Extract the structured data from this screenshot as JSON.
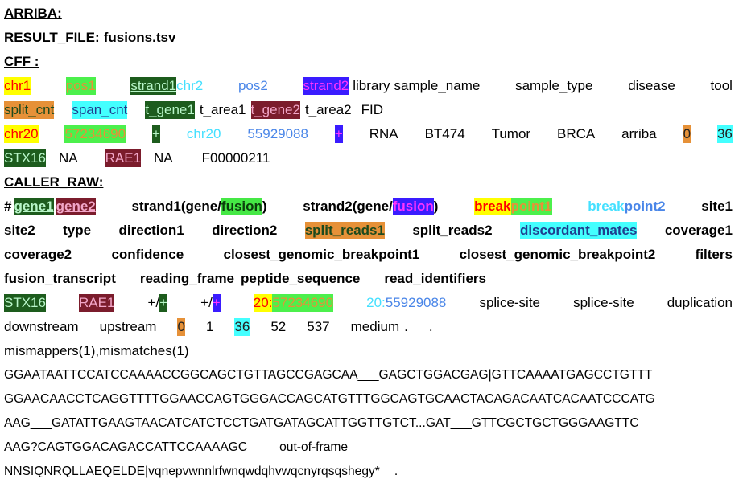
{
  "lines": [
    [
      "ARRIBA:"
    ],
    [
      "RESULT_FILE:",
      "fusions.tsv"
    ],
    [
      "CFF :"
    ],
    [
      "chr1",
      "pos1",
      "strand1",
      "chr2",
      "pos2",
      "strand2",
      "library",
      "sample_name",
      "sample_type",
      "disease",
      "tool"
    ],
    [
      "split_cnt",
      "span_cnt",
      "t_gene1",
      "t_area1",
      "t_gene2",
      "t_area2",
      "FID"
    ],
    [
      "chr20",
      "57234690",
      "+",
      "chr20",
      "55929088",
      "+",
      "RNA",
      "BT474",
      "Tumor",
      "BRCA",
      "arriba",
      "0",
      "36"
    ],
    [
      "STX16",
      "NA",
      "RAE1",
      "NA",
      "F00000211"
    ],
    [
      "CALLER_RAW:"
    ],
    [
      "#",
      "gene1",
      "gene2",
      "strand1(gene/",
      "fusion",
      ")",
      "strand2(gene/",
      "fusion",
      ")",
      "break",
      "point1",
      "break",
      "point2",
      "site1"
    ],
    [
      "site2",
      "type",
      "direction1",
      "direction2",
      "split_reads1",
      "split_reads2",
      "discordant_mates",
      "coverage1"
    ],
    [
      "coverage2",
      "confidence",
      "closest_genomic_breakpoint1",
      "closest_genomic_breakpoint2",
      "filters"
    ],
    [
      "fusion_transcript",
      "reading_frame",
      "peptide_sequence",
      "read_identifiers"
    ],
    [
      "STX16",
      "RAE1",
      "+/",
      "+",
      "+/",
      "+",
      "20:",
      "57234690",
      "20:",
      "55929088",
      "splice-site",
      "splice-site",
      "duplication"
    ],
    [
      "downstream",
      "upstream",
      "0",
      "1",
      "36",
      "52",
      "537",
      "medium",
      ".",
      "."
    ],
    [
      "mismappers(1),mismatches(1)"
    ],
    [
      "GGAATAATTCCATCCAAAACCGGCAGCTGTTAGCCGAGCAA___GAGCTGGACGAG|GTTCAAAATGAGCCTGTTT"
    ],
    [
      "GGAACAACCTCAGGTTTTGGAACCAGTGGGACCAGCATGTTTGGCAGTGCAACTACAGACAATCACAATCCCATG"
    ],
    [
      "AAG___GATATTGAAGTAACATCATCTCCTGATGATAGCATTGGTTGTCT...GAT___GTTCGCTGCTGGGAAGTTC"
    ],
    [
      "AAG?CAGTGGACAGACCATTCCAAAAGC",
      "out-of-frame"
    ],
    [
      "NNSIQNRQLLAEQELDE|vqnepvwnnlrfwnqwdqhvwqcnyrqsqshegy*",
      "."
    ]
  ]
}
